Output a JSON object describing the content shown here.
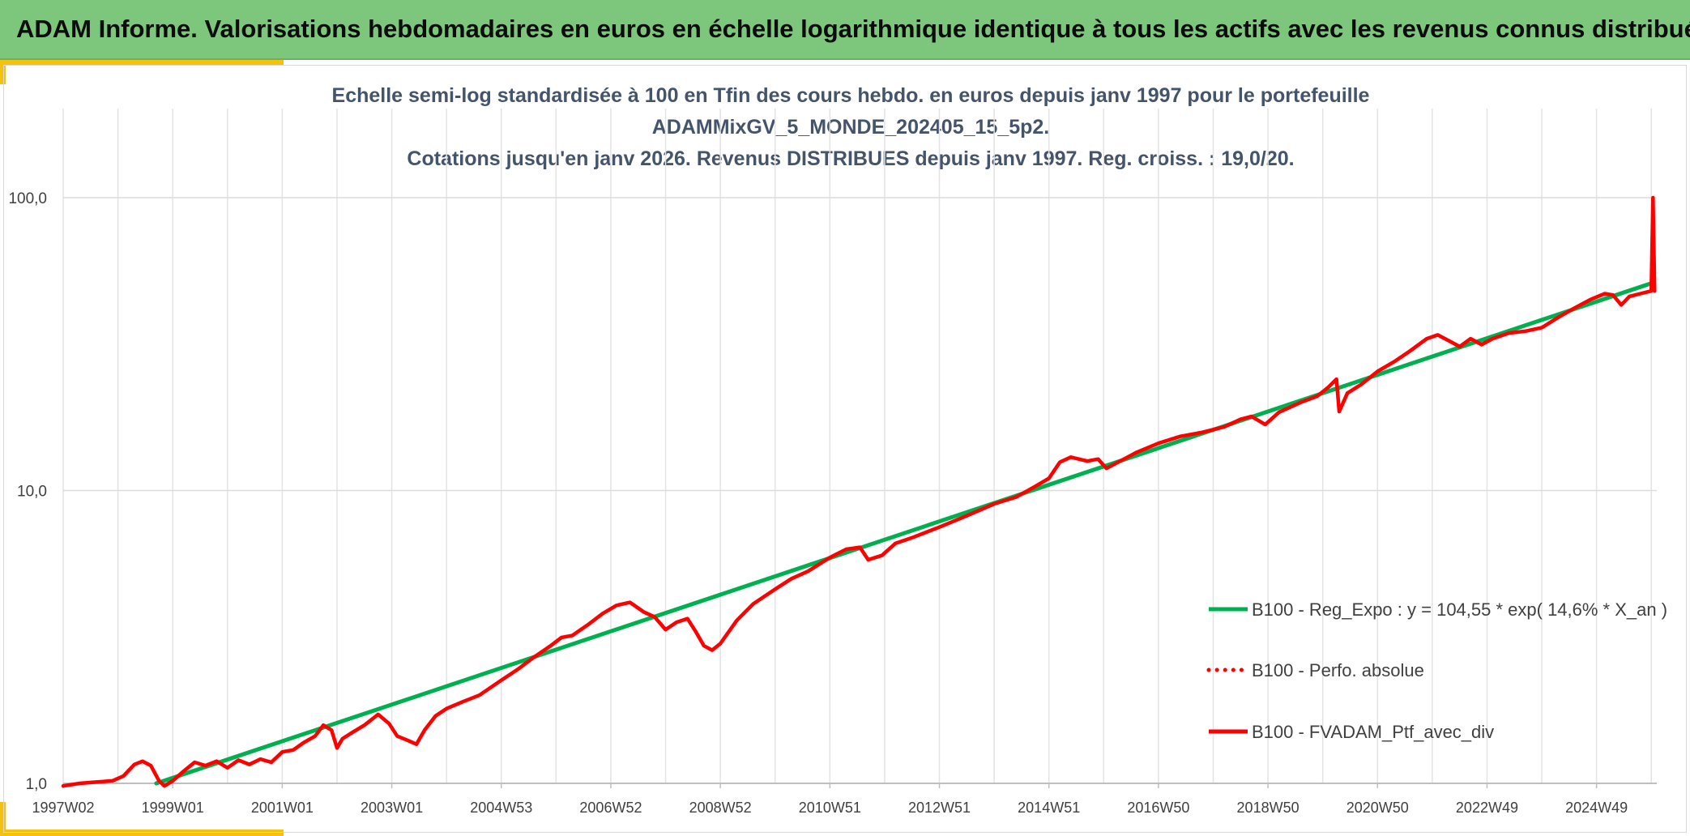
{
  "header": {
    "title": "ADAM Informe. Valorisations hebdomadaires en euros en échelle logarithmique identique à tous les actifs avec les revenus connus distribués"
  },
  "colors": {
    "banner": "#7dc77d",
    "accent": "#f4c20d",
    "regression": "#00b050",
    "portfolio": "#ff0000",
    "title_text": "#44546a"
  },
  "chart_data": {
    "type": "line",
    "title_lines": [
      "Echelle semi-log standardisée à 100 en Tfin des cours hebdo. en euros depuis janv 1997 pour le portefeuille",
      "ADAMMixGV_5_MONDE_202405_15_5p2.",
      "Cotations jusqu'en janv 2026. Revenus DISTRIBUES depuis janv 1997. Reg. croiss. : 19,0/20."
    ],
    "y_scale": "log",
    "ylim": [
      1,
      100
    ],
    "xlim": [
      1997.0,
      2026.1
    ],
    "yticks": [
      {
        "value": 1,
        "label": "1,0"
      },
      {
        "value": 10,
        "label": "10,0"
      },
      {
        "value": 100,
        "label": "100,0"
      }
    ],
    "xticks": [
      {
        "value": 1997.0,
        "label": "1997W02"
      },
      {
        "value": 1999.0,
        "label": "1999W01"
      },
      {
        "value": 2001.0,
        "label": "2001W01"
      },
      {
        "value": 2003.0,
        "label": "2003W01"
      },
      {
        "value": 2005.0,
        "label": "2004W53"
      },
      {
        "value": 2007.0,
        "label": "2006W52"
      },
      {
        "value": 2009.0,
        "label": "2008W52"
      },
      {
        "value": 2011.0,
        "label": "2010W51"
      },
      {
        "value": 2013.0,
        "label": "2012W51"
      },
      {
        "value": 2015.0,
        "label": "2014W51"
      },
      {
        "value": 2017.0,
        "label": "2016W50"
      },
      {
        "value": 2019.0,
        "label": "2018W50"
      },
      {
        "value": 2021.0,
        "label": "2020W50"
      },
      {
        "value": 2023.0,
        "label": "2022W49"
      },
      {
        "value": 2025.0,
        "label": "2024W49"
      }
    ],
    "minor_gridlines_x": [
      1998.0,
      2000.0,
      2002.0,
      2004.0,
      2006.0,
      2008.0,
      2010.0,
      2012.0,
      2014.0,
      2016.0,
      2018.0,
      2020.0,
      2022.0,
      2024.0,
      2026.0
    ],
    "grid": true,
    "legend_position": "right",
    "series": [
      {
        "name": "B100 - Reg_Expo : y = 104,55 * exp( 14,6% *  X_an )",
        "style": "solid",
        "color": "#00b050",
        "points": [
          [
            1998.7,
            1.0
          ],
          [
            2026.0,
            51.0
          ]
        ]
      },
      {
        "name": "B100 - Perfo. absolue",
        "style": "dotted",
        "color": "#ff0000",
        "points": []
      },
      {
        "name": "B100 - FVADAM_Ptf_avec_div",
        "style": "solid",
        "color": "#ff0000",
        "points": [
          [
            1997.0,
            0.98
          ],
          [
            1997.3,
            1.0
          ],
          [
            1997.6,
            1.01
          ],
          [
            1997.9,
            1.02
          ],
          [
            1998.1,
            1.06
          ],
          [
            1998.3,
            1.16
          ],
          [
            1998.45,
            1.19
          ],
          [
            1998.6,
            1.15
          ],
          [
            1998.75,
            1.02
          ],
          [
            1998.85,
            0.98
          ],
          [
            1999.0,
            1.02
          ],
          [
            1999.2,
            1.1
          ],
          [
            1999.4,
            1.18
          ],
          [
            1999.6,
            1.15
          ],
          [
            1999.8,
            1.19
          ],
          [
            2000.0,
            1.13
          ],
          [
            2000.2,
            1.2
          ],
          [
            2000.4,
            1.16
          ],
          [
            2000.6,
            1.21
          ],
          [
            2000.8,
            1.18
          ],
          [
            2001.0,
            1.28
          ],
          [
            2001.2,
            1.3
          ],
          [
            2001.4,
            1.38
          ],
          [
            2001.6,
            1.45
          ],
          [
            2001.75,
            1.58
          ],
          [
            2001.9,
            1.52
          ],
          [
            2002.0,
            1.32
          ],
          [
            2002.1,
            1.42
          ],
          [
            2002.3,
            1.5
          ],
          [
            2002.5,
            1.58
          ],
          [
            2002.75,
            1.72
          ],
          [
            2002.95,
            1.6
          ],
          [
            2003.1,
            1.45
          ],
          [
            2003.3,
            1.4
          ],
          [
            2003.45,
            1.36
          ],
          [
            2003.6,
            1.52
          ],
          [
            2003.8,
            1.7
          ],
          [
            2004.0,
            1.8
          ],
          [
            2004.3,
            1.9
          ],
          [
            2004.6,
            2.0
          ],
          [
            2005.0,
            2.25
          ],
          [
            2005.3,
            2.45
          ],
          [
            2005.6,
            2.7
          ],
          [
            2005.9,
            2.95
          ],
          [
            2006.1,
            3.15
          ],
          [
            2006.3,
            3.2
          ],
          [
            2006.6,
            3.5
          ],
          [
            2006.85,
            3.8
          ],
          [
            2007.1,
            4.05
          ],
          [
            2007.35,
            4.15
          ],
          [
            2007.6,
            3.85
          ],
          [
            2007.8,
            3.7
          ],
          [
            2008.0,
            3.35
          ],
          [
            2008.2,
            3.55
          ],
          [
            2008.4,
            3.65
          ],
          [
            2008.55,
            3.3
          ],
          [
            2008.7,
            2.95
          ],
          [
            2008.85,
            2.85
          ],
          [
            2009.0,
            3.0
          ],
          [
            2009.3,
            3.6
          ],
          [
            2009.6,
            4.1
          ],
          [
            2010.0,
            4.6
          ],
          [
            2010.3,
            5.0
          ],
          [
            2010.6,
            5.3
          ],
          [
            2011.0,
            5.9
          ],
          [
            2011.3,
            6.3
          ],
          [
            2011.55,
            6.4
          ],
          [
            2011.7,
            5.8
          ],
          [
            2011.95,
            6.0
          ],
          [
            2012.2,
            6.6
          ],
          [
            2012.5,
            6.9
          ],
          [
            2013.0,
            7.5
          ],
          [
            2013.5,
            8.2
          ],
          [
            2014.0,
            9.0
          ],
          [
            2014.4,
            9.5
          ],
          [
            2014.7,
            10.2
          ],
          [
            2015.0,
            11.0
          ],
          [
            2015.2,
            12.5
          ],
          [
            2015.4,
            13.0
          ],
          [
            2015.7,
            12.6
          ],
          [
            2015.9,
            12.8
          ],
          [
            2016.05,
            11.9
          ],
          [
            2016.3,
            12.6
          ],
          [
            2016.6,
            13.5
          ],
          [
            2017.0,
            14.5
          ],
          [
            2017.4,
            15.3
          ],
          [
            2017.8,
            15.8
          ],
          [
            2018.2,
            16.5
          ],
          [
            2018.5,
            17.5
          ],
          [
            2018.7,
            17.9
          ],
          [
            2018.95,
            16.8
          ],
          [
            2019.2,
            18.5
          ],
          [
            2019.6,
            20.0
          ],
          [
            2019.9,
            21.0
          ],
          [
            2020.1,
            22.5
          ],
          [
            2020.25,
            24.0
          ],
          [
            2020.3,
            18.6
          ],
          [
            2020.45,
            21.5
          ],
          [
            2020.7,
            23.0
          ],
          [
            2021.0,
            25.5
          ],
          [
            2021.3,
            27.5
          ],
          [
            2021.6,
            30.0
          ],
          [
            2021.9,
            33.0
          ],
          [
            2022.1,
            34.0
          ],
          [
            2022.3,
            32.5
          ],
          [
            2022.5,
            31.0
          ],
          [
            2022.7,
            33.0
          ],
          [
            2022.9,
            31.5
          ],
          [
            2023.1,
            33.0
          ],
          [
            2023.4,
            34.5
          ],
          [
            2023.7,
            35.0
          ],
          [
            2024.0,
            36.0
          ],
          [
            2024.3,
            39.0
          ],
          [
            2024.6,
            42.0
          ],
          [
            2024.9,
            45.0
          ],
          [
            2025.15,
            47.0
          ],
          [
            2025.3,
            46.5
          ],
          [
            2025.45,
            43.0
          ],
          [
            2025.6,
            46.0
          ],
          [
            2025.8,
            47.0
          ],
          [
            2026.0,
            48.0
          ],
          [
            2026.03,
            100.0
          ],
          [
            2026.06,
            48.0
          ]
        ]
      }
    ]
  }
}
